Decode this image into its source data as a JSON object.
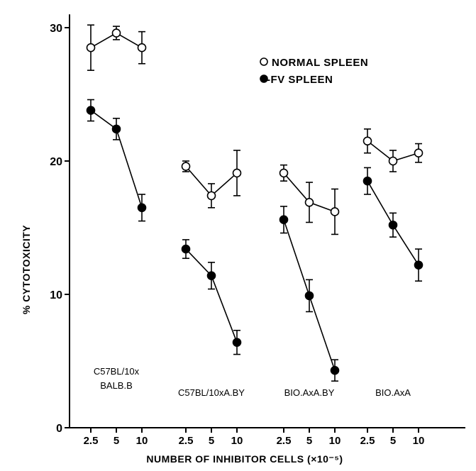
{
  "chart_data": {
    "type": "line",
    "xlabel": "NUMBER OF INHIBITOR CELLS (×10⁻⁵)",
    "ylabel": "% CYTOTOXICITY",
    "ylim": [
      0,
      31
    ],
    "yticks": [
      0,
      10,
      20,
      30
    ],
    "xtick_labels": [
      "2.5",
      "5",
      "10"
    ],
    "legend": {
      "placement": "top-right",
      "entries": [
        {
          "marker": "open-circle",
          "label": "NORMAL SPLEEN"
        },
        {
          "marker": "filled-circle",
          "label": "-FV SPLEEN"
        }
      ]
    },
    "groups": [
      {
        "label_lines": [
          "C57BL/10x",
          "BALB.B"
        ],
        "x": [
          2.5,
          5,
          10
        ],
        "series": [
          {
            "marker": "open-circle",
            "values": [
              28.5,
              29.6,
              28.5
            ],
            "errors": [
              1.7,
              0.5,
              1.2
            ]
          },
          {
            "marker": "filled-circle",
            "values": [
              23.8,
              22.4,
              16.5
            ],
            "errors": [
              0.8,
              0.8,
              1.0
            ]
          }
        ]
      },
      {
        "label_lines": [
          "C57BL/10xA.BY"
        ],
        "x": [
          2.5,
          5,
          10
        ],
        "series": [
          {
            "marker": "open-circle",
            "values": [
              19.6,
              17.4,
              19.1
            ],
            "errors": [
              0.4,
              0.9,
              1.7
            ]
          },
          {
            "marker": "filled-circle",
            "values": [
              13.4,
              11.4,
              6.4
            ],
            "errors": [
              0.7,
              1.0,
              0.9
            ]
          }
        ]
      },
      {
        "label_lines": [
          "BIO.AxA.BY"
        ],
        "x": [
          2.5,
          5,
          10
        ],
        "series": [
          {
            "marker": "open-circle",
            "values": [
              19.1,
              16.9,
              16.2
            ],
            "errors": [
              0.6,
              1.5,
              1.7
            ]
          },
          {
            "marker": "filled-circle",
            "values": [
              15.6,
              9.9,
              4.3
            ],
            "errors": [
              1.0,
              1.2,
              0.8
            ]
          }
        ]
      },
      {
        "label_lines": [
          "BIO.AxA"
        ],
        "x": [
          2.5,
          5,
          10
        ],
        "series": [
          {
            "marker": "open-circle",
            "values": [
              21.5,
              20.0,
              20.6
            ],
            "errors": [
              0.9,
              0.8,
              0.7
            ]
          },
          {
            "marker": "filled-circle",
            "values": [
              18.5,
              15.2,
              12.2
            ],
            "errors": [
              1.0,
              0.9,
              1.2
            ]
          }
        ]
      }
    ]
  }
}
